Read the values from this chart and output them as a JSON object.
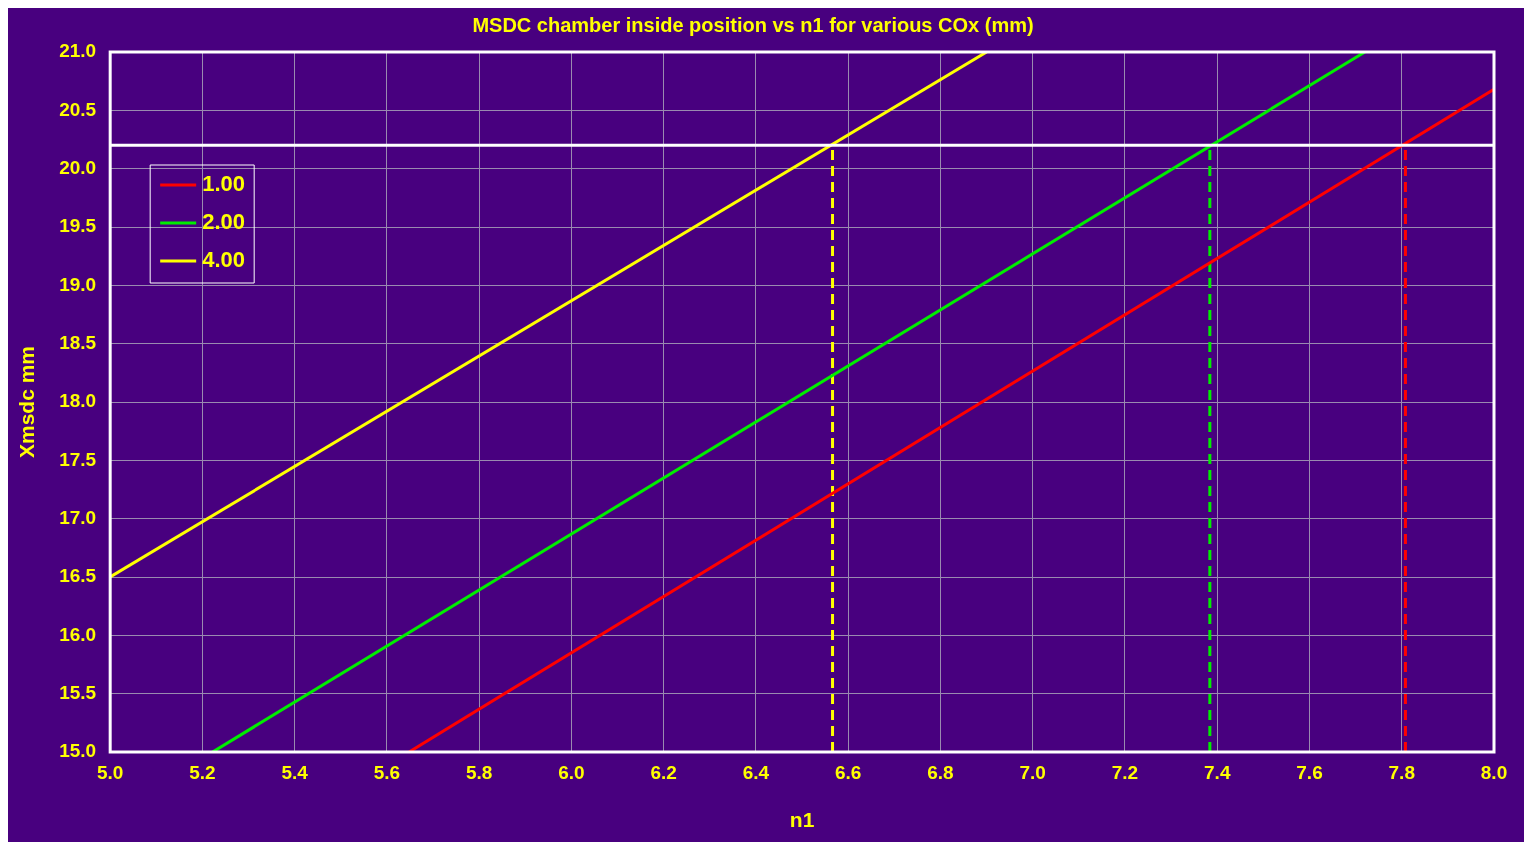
{
  "chart_data": {
    "type": "line",
    "title": "MSDC chamber inside position vs n1 for various COx (mm)",
    "xlabel": "n1",
    "ylabel": "Xmsdc mm",
    "series": [
      {
        "name": "1.00",
        "color": "#ff0000",
        "x": [
          5.648,
          8.0
        ],
        "values": [
          15.0,
          20.68
        ]
      },
      {
        "name": "2.00",
        "color": "#00ee00",
        "x": [
          5.222,
          7.72
        ],
        "values": [
          15.0,
          21.0
        ]
      },
      {
        "name": "4.00",
        "color": "#ffff00",
        "x": [
          5.0,
          6.9
        ],
        "values": [
          16.5,
          21.0
        ]
      },
      {
        "color": "#ffff00",
        "x": [
          6.566,
          6.566
        ],
        "values": [
          15.0,
          20.2
        ],
        "line_style": "dashed"
      },
      {
        "color": "#00ee00",
        "x": [
          7.384,
          7.384
        ],
        "values": [
          15.0,
          20.2
        ],
        "line_style": "dashed"
      },
      {
        "color": "#ff0000",
        "x": [
          7.808,
          7.808
        ],
        "values": [
          15.0,
          20.2
        ],
        "line_style": "dashed"
      }
    ],
    "ref_lines": [
      {
        "axis": "y",
        "value": 20.2,
        "color": "#ffffff"
      }
    ],
    "xlim": [
      5.0,
      8.0
    ],
    "xticks": [
      {
        "value": 5,
        "label": "5.0"
      },
      {
        "value": 5.2,
        "label": "5.2"
      },
      {
        "value": 5.4,
        "label": "5.4"
      },
      {
        "value": 5.6,
        "label": "5.6"
      },
      {
        "value": 5.8,
        "label": "5.8"
      },
      {
        "value": 6,
        "label": "6.0"
      },
      {
        "value": 6.2,
        "label": "6.2"
      },
      {
        "value": 6.4,
        "label": "6.4"
      },
      {
        "value": 6.6,
        "label": "6.6"
      },
      {
        "value": 6.8,
        "label": "6.8"
      },
      {
        "value": 7,
        "label": "7.0"
      },
      {
        "value": 7.2,
        "label": "7.2"
      },
      {
        "value": 7.4,
        "label": "7.4"
      },
      {
        "value": 7.6,
        "label": "7.6"
      },
      {
        "value": 7.8,
        "label": "7.8"
      },
      {
        "value": 8,
        "label": "8.0"
      }
    ],
    "ylim": [
      15.0,
      21.0
    ],
    "yticks": [
      {
        "value": 15,
        "label": "15.0"
      },
      15.5,
      {
        "value": 16,
        "label": "16.0"
      },
      16.5,
      {
        "value": 17,
        "label": "17.0"
      },
      17.5,
      {
        "value": 18,
        "label": "18.0"
      },
      18.5,
      {
        "value": 19,
        "label": "19.0"
      },
      19.5,
      {
        "value": 20,
        "label": "20.0"
      },
      20.5,
      {
        "value": 21,
        "label": "21.0"
      }
    ],
    "grid": true,
    "legend": "top left",
    "marker": "none",
    "line_style": "solid"
  }
}
